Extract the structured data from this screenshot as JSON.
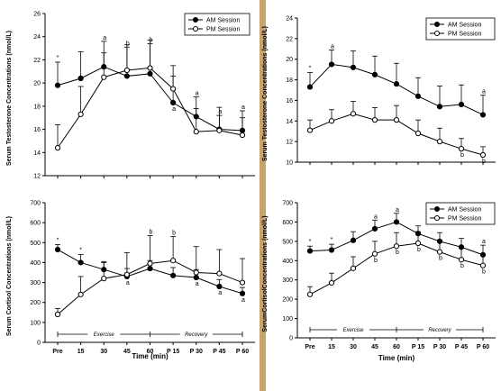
{
  "divider_color": "#c8a46a",
  "chart_data": [
    {
      "id": "left-top",
      "type": "line",
      "title": "",
      "xlabel": "",
      "ylabel": "Serum Testosterone Concentrations (nmol/L)",
      "categories": [
        "Pre",
        "15",
        "30",
        "45",
        "60",
        "P 15",
        "P 30",
        "P 45",
        "P 60"
      ],
      "x_tick_labels": [],
      "ylim": [
        12,
        26
      ],
      "yticks": [
        12,
        14,
        16,
        18,
        20,
        22,
        24,
        26
      ],
      "grid": false,
      "legend": "top-right",
      "series": [
        {
          "name": "AM Session",
          "marker": "filled-circle",
          "color": "#000000",
          "values": [
            19.8,
            20.4,
            21.4,
            20.6,
            20.8,
            18.3,
            17.1,
            16.0,
            15.9
          ],
          "errors": [
            2.0,
            2.3,
            2.2,
            2.7,
            2.9,
            2.3,
            1.7,
            1.2,
            1.7
          ]
        },
        {
          "name": "PM Session",
          "marker": "open-circle",
          "color": "#000000",
          "values": [
            14.4,
            17.3,
            20.5,
            21.1,
            21.3,
            19.5,
            15.8,
            15.9,
            15.5
          ],
          "errors": [
            2.0,
            2.4,
            2.1,
            2.0,
            2.1,
            2.0,
            2.0,
            2.0,
            1.5
          ]
        }
      ],
      "annotations": [
        {
          "label": "*",
          "index": 0
        },
        {
          "label": "a",
          "index": 2
        },
        {
          "label": "b",
          "index": 3
        },
        {
          "label": "b",
          "index": 4
        },
        {
          "label": "a",
          "index": 5
        },
        {
          "label": "a",
          "index": 6
        },
        {
          "label": "a",
          "index": 7
        },
        {
          "label": "a",
          "index": 8
        }
      ]
    },
    {
      "id": "left-bottom",
      "type": "line",
      "title": "",
      "xlabel": "Time (min)",
      "ylabel": "Serum Cortisol Concentrations (nmol/L)",
      "categories": [
        "Pre",
        "15",
        "30",
        "45",
        "60",
        "P 15",
        "P 30",
        "P 45",
        "P 60"
      ],
      "x_tick_labels": [
        "Pre",
        "15",
        "30",
        "45",
        "60",
        "P 15",
        "P 30",
        "P 45",
        "P 60"
      ],
      "ylim": [
        0,
        700
      ],
      "yticks": [
        0,
        100,
        200,
        300,
        400,
        500,
        600,
        700
      ],
      "grid": false,
      "legend": "none",
      "phases": [
        "Exercise",
        "Recovery"
      ],
      "series": [
        {
          "name": "",
          "marker": "filled-circle",
          "color": "#000000",
          "values": [
            465,
            400,
            365,
            330,
            370,
            335,
            325,
            280,
            245
          ],
          "errors": [
            25,
            40,
            40,
            40,
            40,
            40,
            40,
            35,
            30
          ]
        },
        {
          "name": "",
          "marker": "open-circle",
          "color": "#000000",
          "values": [
            140,
            240,
            320,
            340,
            395,
            410,
            350,
            345,
            300
          ],
          "errors": [
            30,
            90,
            80,
            110,
            140,
            120,
            130,
            120,
            120
          ]
        }
      ],
      "annotations": [
        {
          "label": "*",
          "index": 0
        },
        {
          "label": "*",
          "index": 1
        },
        {
          "label": "a",
          "index": 3
        },
        {
          "label": "b",
          "index": 4
        },
        {
          "label": "b",
          "index": 5
        },
        {
          "label": "a",
          "index": 6
        },
        {
          "label": "a",
          "index": 7
        },
        {
          "label": "a",
          "index": 8
        }
      ]
    },
    {
      "id": "right-top",
      "type": "line",
      "title": "",
      "xlabel": "",
      "ylabel": "Serum Testosterone Concentrations (nmol/L)",
      "categories": [
        "Pre",
        "15",
        "30",
        "45",
        "60",
        "P 15",
        "P 30",
        "P 45",
        "P 60"
      ],
      "x_tick_labels": [],
      "ylim": [
        10,
        24
      ],
      "yticks": [
        10,
        12,
        14,
        16,
        18,
        20,
        22,
        24
      ],
      "grid": false,
      "legend": "top-right",
      "series": [
        {
          "name": "AM Session",
          "marker": "filled-circle",
          "color": "#000000",
          "values": [
            17.3,
            19.5,
            19.2,
            18.5,
            17.6,
            16.4,
            15.4,
            15.6,
            14.6
          ],
          "errors": [
            1.4,
            1.4,
            1.6,
            1.8,
            2.0,
            1.8,
            2.0,
            1.9,
            1.9
          ]
        },
        {
          "name": "PM Session",
          "marker": "open-circle",
          "color": "#000000",
          "values": [
            13.1,
            14.0,
            14.7,
            14.1,
            14.1,
            12.8,
            12.0,
            11.3,
            10.7
          ],
          "errors": [
            1.0,
            1.1,
            1.2,
            1.2,
            1.4,
            1.3,
            1.3,
            1.0,
            0.8
          ]
        }
      ],
      "annotations": [
        {
          "label": "*",
          "index": 0
        },
        {
          "label": "a",
          "index": 1
        },
        {
          "label": "a",
          "index": 8
        },
        {
          "label": "b",
          "index": 7
        },
        {
          "label": "b",
          "index": 8
        }
      ]
    },
    {
      "id": "right-bottom",
      "type": "line",
      "title": "",
      "xlabel": "Time (min)",
      "ylabel": "SerumCortisolConcentrations (nmol/L)",
      "categories": [
        "Pre",
        "15",
        "30",
        "45",
        "60",
        "P 15",
        "P 30",
        "P 45",
        "P 60"
      ],
      "x_tick_labels": [
        "Pre",
        "15",
        "30",
        "45",
        "60",
        "P 15",
        "P 30",
        "P 45",
        "P 60"
      ],
      "ylim": [
        0,
        700
      ],
      "yticks": [
        0,
        100,
        200,
        300,
        400,
        500,
        600,
        700
      ],
      "grid": false,
      "legend": "top-right",
      "phases": [
        "Exercise",
        "Recovery"
      ],
      "series": [
        {
          "name": "AM Session",
          "marker": "filled-circle",
          "color": "#000000",
          "values": [
            450,
            455,
            505,
            565,
            600,
            540,
            500,
            470,
            430
          ],
          "errors": [
            25,
            30,
            45,
            45,
            45,
            40,
            45,
            45,
            50
          ]
        },
        {
          "name": "PM Session",
          "marker": "open-circle",
          "color": "#000000",
          "values": [
            225,
            285,
            360,
            435,
            475,
            490,
            445,
            405,
            375
          ],
          "errors": [
            40,
            50,
            60,
            65,
            70,
            60,
            60,
            70,
            60
          ]
        }
      ],
      "annotations": [
        {
          "label": "*",
          "index": 0
        },
        {
          "label": "*",
          "index": 1
        },
        {
          "label": "a",
          "index": 3
        },
        {
          "label": "a",
          "index": 4
        },
        {
          "label": "b",
          "index": 3
        },
        {
          "label": "b",
          "index": 4
        },
        {
          "label": "b",
          "index": 5
        },
        {
          "label": "b",
          "index": 6
        },
        {
          "label": "b",
          "index": 7
        },
        {
          "label": "a",
          "index": 8
        },
        {
          "label": "b",
          "index": 8
        }
      ]
    }
  ]
}
